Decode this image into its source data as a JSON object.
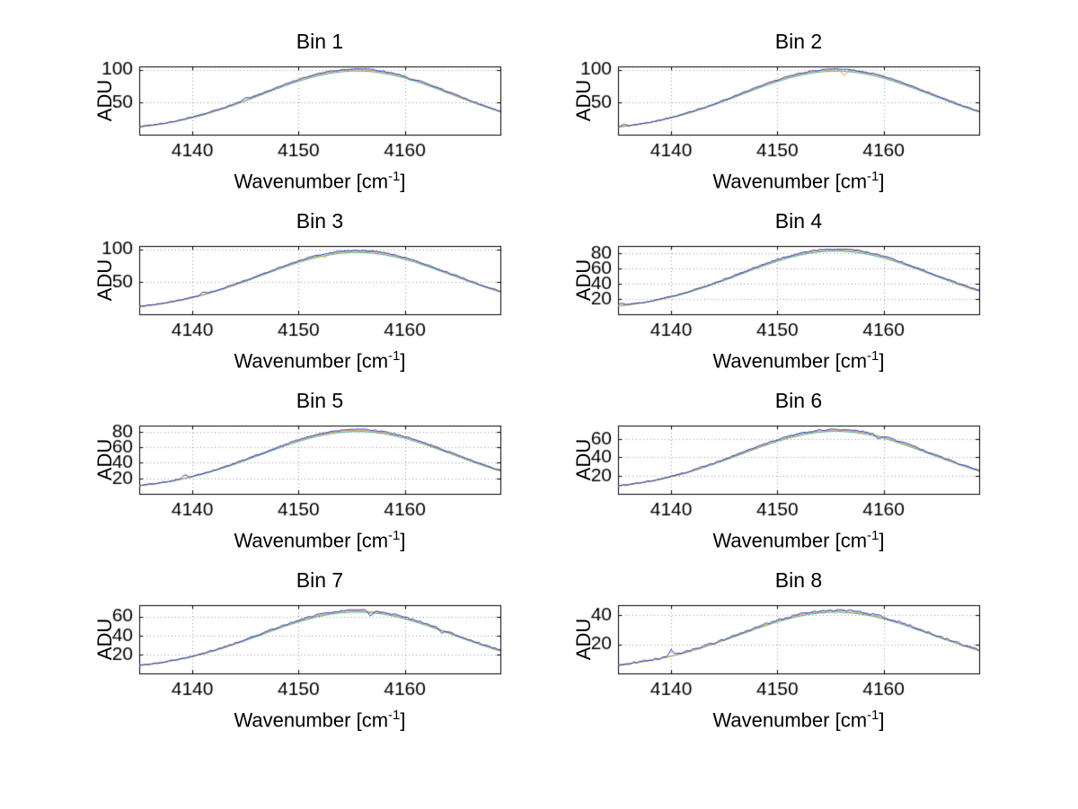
{
  "figure": {
    "background": "#ffffff",
    "axis_color": "#000000",
    "grid_color": "#999999",
    "grid_style": "dotted"
  },
  "labels": {
    "ylabel": "ADU",
    "xlabel_main": "Wavenumber [cm",
    "xlabel_sup": "-1",
    "xlabel_end": "]"
  },
  "chart_data": [
    {
      "type": "line",
      "title": "Bin 1",
      "xlabel": "Wavenumber [cm-1]",
      "ylabel": "ADU",
      "xlim": [
        4135,
        4169
      ],
      "xticks": [
        4140,
        4150,
        4160
      ],
      "yticks": [
        50,
        100
      ],
      "ylim": [
        0,
        105
      ],
      "grid": true,
      "x": [
        4135,
        4136,
        4137,
        4138,
        4139,
        4140,
        4141,
        4142,
        4143,
        4144,
        4145,
        4146,
        4147,
        4148,
        4149,
        4150,
        4151,
        4152,
        4153,
        4154,
        4155,
        4156,
        4157,
        4158,
        4159,
        4160,
        4161,
        4162,
        4163,
        4164,
        4165,
        4166,
        4167,
        4168,
        4169
      ],
      "values": [
        12.1,
        14.1,
        16.5,
        19.3,
        22.7,
        26.6,
        30.9,
        35.9,
        41.2,
        47,
        53.1,
        59.4,
        65.8,
        72.2,
        78.2,
        83.8,
        88.9,
        93.1,
        96.4,
        98.7,
        99.8,
        99.8,
        98.7,
        96.4,
        93.1,
        88.9,
        83.8,
        78.2,
        72.2,
        65.8,
        59.4,
        53.1,
        47,
        41.2,
        35.9
      ],
      "series": [
        {
          "name": "trace-teal",
          "color": "#3fae9c",
          "scale": 0.98,
          "noise": 0
        },
        {
          "name": "trace-orange",
          "color": "#e8952f",
          "scale": 1.0,
          "noise": 0.25
        },
        {
          "name": "trace-blue",
          "color": "#2438c8",
          "scale": 1.012,
          "noise": 0.8
        }
      ],
      "spikes": [
        {
          "x": 4145,
          "dy": 3,
          "series": "trace-blue"
        },
        {
          "x": 4160.6,
          "dy": -3,
          "series": "trace-blue"
        }
      ]
    },
    {
      "type": "line",
      "title": "Bin 2",
      "xlabel": "Wavenumber [cm-1]",
      "ylabel": "ADU",
      "xlim": [
        4135,
        4169
      ],
      "xticks": [
        4140,
        4150,
        4160
      ],
      "yticks": [
        50,
        100
      ],
      "ylim": [
        0,
        105
      ],
      "grid": true,
      "x": [
        4135,
        4136,
        4137,
        4138,
        4139,
        4140,
        4141,
        4142,
        4143,
        4144,
        4145,
        4146,
        4147,
        4148,
        4149,
        4150,
        4151,
        4152,
        4153,
        4154,
        4155,
        4156,
        4157,
        4158,
        4159,
        4160,
        4161,
        4162,
        4163,
        4164,
        4165,
        4166,
        4167,
        4168,
        4169
      ],
      "values": [
        11.8,
        13.9,
        16.2,
        19,
        22.4,
        26.3,
        30.6,
        35.5,
        40.8,
        46.5,
        52.6,
        58.9,
        65.3,
        71.7,
        77.7,
        83.4,
        88.5,
        92.7,
        96,
        98.4,
        99.6,
        99.7,
        98.6,
        96.2,
        92.9,
        88.7,
        83.5,
        77.9,
        71.9,
        65.5,
        59.1,
        52.8,
        46.7,
        40.9,
        35.6
      ],
      "series": [
        {
          "name": "trace-teal",
          "color": "#3fae9c",
          "scale": 0.98,
          "noise": 0
        },
        {
          "name": "trace-orange",
          "color": "#e8952f",
          "scale": 1.0,
          "noise": 0.25
        },
        {
          "name": "trace-blue",
          "color": "#2438c8",
          "scale": 1.012,
          "noise": 0.8
        }
      ],
      "spikes": [
        {
          "x": 4156.3,
          "dy": -9,
          "series": "trace-orange"
        },
        {
          "x": 4135.5,
          "dy": 3,
          "series": "trace-blue"
        }
      ]
    },
    {
      "type": "line",
      "title": "Bin 3",
      "xlabel": "Wavenumber [cm-1]",
      "ylabel": "ADU",
      "xlim": [
        4135,
        4169
      ],
      "xticks": [
        4140,
        4150,
        4160
      ],
      "yticks": [
        50,
        100
      ],
      "ylim": [
        0,
        105
      ],
      "grid": true,
      "x": [
        4135,
        4136,
        4137,
        4138,
        4139,
        4140,
        4141,
        4142,
        4143,
        4144,
        4145,
        4146,
        4147,
        4148,
        4149,
        4150,
        4151,
        4152,
        4153,
        4154,
        4155,
        4156,
        4157,
        4158,
        4159,
        4160,
        4161,
        4162,
        4163,
        4164,
        4165,
        4166,
        4167,
        4168,
        4169
      ],
      "values": [
        11.9,
        13.8,
        16.1,
        18.9,
        22.1,
        25.9,
        30.1,
        34.9,
        40.1,
        45.7,
        51.6,
        57.7,
        63.9,
        70,
        75.8,
        81.4,
        86.2,
        90.3,
        93.5,
        95.7,
        96.8,
        96.8,
        95.7,
        93.5,
        90.3,
        86.2,
        81.4,
        75.8,
        70,
        63.9,
        57.7,
        51.6,
        45.7,
        40.1,
        34.9
      ],
      "series": [
        {
          "name": "trace-teal",
          "color": "#3fae9c",
          "scale": 0.98,
          "noise": 0
        },
        {
          "name": "trace-orange",
          "color": "#e8952f",
          "scale": 1.0,
          "noise": 0.25
        },
        {
          "name": "trace-blue",
          "color": "#2438c8",
          "scale": 1.012,
          "noise": 0.8
        }
      ],
      "spikes": [
        {
          "x": 4141,
          "dy": 3,
          "series": "trace-blue"
        },
        {
          "x": 4152.5,
          "dy": -4,
          "series": "trace-orange"
        }
      ]
    },
    {
      "type": "line",
      "title": "Bin 4",
      "xlabel": "Wavenumber [cm-1]",
      "ylabel": "ADU",
      "xlim": [
        4135,
        4169
      ],
      "xticks": [
        4140,
        4150,
        4160
      ],
      "yticks": [
        20,
        40,
        60,
        80
      ],
      "ylim": [
        0,
        90
      ],
      "grid": true,
      "x": [
        4135,
        4136,
        4137,
        4138,
        4139,
        4140,
        4141,
        4142,
        4143,
        4144,
        4145,
        4146,
        4147,
        4148,
        4149,
        4150,
        4151,
        4152,
        4153,
        4154,
        4155,
        4156,
        4157,
        4158,
        4159,
        4160,
        4161,
        4162,
        4163,
        4164,
        4165,
        4166,
        4167,
        4168,
        4169
      ],
      "values": [
        11,
        12.7,
        14.7,
        17.1,
        19.9,
        23.2,
        26.8,
        31,
        35.5,
        40.4,
        45.5,
        50.8,
        56.2,
        61.6,
        66.6,
        71.4,
        75.6,
        79.2,
        82,
        83.9,
        84.9,
        84.9,
        83.9,
        82,
        79.2,
        75.6,
        71.4,
        66.6,
        61.6,
        56.2,
        50.8,
        45.5,
        40.4,
        35.5,
        31
      ],
      "series": [
        {
          "name": "trace-teal",
          "color": "#3fae9c",
          "scale": 0.98,
          "noise": 0
        },
        {
          "name": "trace-orange",
          "color": "#e8952f",
          "scale": 1.0,
          "noise": 0.25
        },
        {
          "name": "trace-blue",
          "color": "#2438c8",
          "scale": 1.012,
          "noise": 0.8
        }
      ],
      "spikes": [
        {
          "x": 4135.3,
          "dy": 3,
          "series": "trace-blue"
        }
      ]
    },
    {
      "type": "line",
      "title": "Bin 5",
      "xlabel": "Wavenumber [cm-1]",
      "ylabel": "ADU",
      "xlim": [
        4135,
        4169
      ],
      "xticks": [
        4140,
        4150,
        4160
      ],
      "yticks": [
        20,
        40,
        60,
        80
      ],
      "ylim": [
        0,
        88
      ],
      "grid": true,
      "x": [
        4135,
        4136,
        4137,
        4138,
        4139,
        4140,
        4141,
        4142,
        4143,
        4144,
        4145,
        4146,
        4147,
        4148,
        4149,
        4150,
        4151,
        4152,
        4153,
        4154,
        4155,
        4156,
        4157,
        4158,
        4159,
        4160,
        4161,
        4162,
        4163,
        4164,
        4165,
        4166,
        4167,
        4168,
        4169
      ],
      "values": [
        10.8,
        12.4,
        14.3,
        16.6,
        19.3,
        22.5,
        26,
        30,
        34.3,
        39,
        44,
        49.1,
        54.3,
        59.4,
        64.3,
        68.9,
        73,
        76.4,
        79.1,
        80.9,
        81.9,
        81.9,
        80.9,
        79.1,
        76.4,
        73,
        68.9,
        64.3,
        59.4,
        54.3,
        49.1,
        44,
        39,
        34.3,
        30
      ],
      "series": [
        {
          "name": "trace-teal",
          "color": "#3fae9c",
          "scale": 0.98,
          "noise": 0
        },
        {
          "name": "trace-orange",
          "color": "#e8952f",
          "scale": 1.0,
          "noise": 0.25
        },
        {
          "name": "trace-blue",
          "color": "#2438c8",
          "scale": 1.012,
          "noise": 0.8
        }
      ],
      "spikes": [
        {
          "x": 4139.3,
          "dy": 4,
          "series": "trace-blue"
        }
      ]
    },
    {
      "type": "line",
      "title": "Bin 6",
      "xlabel": "Wavenumber [cm-1]",
      "ylabel": "ADU",
      "xlim": [
        4135,
        4169
      ],
      "xticks": [
        4140,
        4150,
        4160
      ],
      "yticks": [
        20,
        40,
        60
      ],
      "ylim": [
        0,
        75
      ],
      "grid": true,
      "x": [
        4135,
        4136,
        4137,
        4138,
        4139,
        4140,
        4141,
        4142,
        4143,
        4144,
        4145,
        4146,
        4147,
        4148,
        4149,
        4150,
        4151,
        4152,
        4153,
        4154,
        4155,
        4156,
        4157,
        4158,
        4159,
        4160,
        4161,
        4162,
        4163,
        4164,
        4165,
        4166,
        4167,
        4168,
        4169
      ],
      "values": [
        8.9,
        10.3,
        12,
        14,
        16.3,
        19,
        22,
        25.4,
        29.2,
        33.2,
        37.4,
        41.8,
        46.2,
        50.7,
        54.8,
        58.8,
        62.3,
        65.2,
        67.5,
        69.1,
        69.9,
        69.9,
        69.1,
        67.5,
        65.2,
        62.3,
        58.8,
        54.8,
        50.7,
        46.2,
        41.8,
        37.4,
        33.2,
        29.2,
        25.4
      ],
      "series": [
        {
          "name": "trace-teal",
          "color": "#3fae9c",
          "scale": 0.98,
          "noise": 0
        },
        {
          "name": "trace-orange",
          "color": "#e8952f",
          "scale": 1.0,
          "noise": 0.25
        },
        {
          "name": "trace-blue",
          "color": "#2438c8",
          "scale": 1.012,
          "noise": 0.8
        }
      ],
      "spikes": [
        {
          "x": 4159.5,
          "dy": -4,
          "series": "trace-blue"
        }
      ]
    },
    {
      "type": "line",
      "title": "Bin 7",
      "xlabel": "Wavenumber [cm-1]",
      "ylabel": "ADU",
      "xlim": [
        4135,
        4169
      ],
      "xticks": [
        4140,
        4150,
        4160
      ],
      "yticks": [
        20,
        40,
        60
      ],
      "ylim": [
        0,
        72
      ],
      "grid": true,
      "x": [
        4135,
        4136,
        4137,
        4138,
        4139,
        4140,
        4141,
        4142,
        4143,
        4144,
        4145,
        4146,
        4147,
        4148,
        4149,
        4150,
        4151,
        4152,
        4153,
        4154,
        4155,
        4156,
        4157,
        4158,
        4159,
        4160,
        4161,
        4162,
        4163,
        4164,
        4165,
        4166,
        4167,
        4168,
        4169
      ],
      "values": [
        8.6,
        9.9,
        11.5,
        13.4,
        15.5,
        18.1,
        20.9,
        24.1,
        27.6,
        31.4,
        35.4,
        39.5,
        43.7,
        47.8,
        51.8,
        55.4,
        58.7,
        61.5,
        63.7,
        65.1,
        65.9,
        65.9,
        65.1,
        63.7,
        61.5,
        58.7,
        55.4,
        51.8,
        47.8,
        43.7,
        39.5,
        35.4,
        31.4,
        27.6,
        24.1
      ],
      "series": [
        {
          "name": "trace-teal",
          "color": "#3fae9c",
          "scale": 0.98,
          "noise": 0
        },
        {
          "name": "trace-orange",
          "color": "#e8952f",
          "scale": 1.0,
          "noise": 0.25
        },
        {
          "name": "trace-blue",
          "color": "#2438c8",
          "scale": 1.012,
          "noise": 0.8
        }
      ],
      "spikes": [
        {
          "x": 4156.8,
          "dy": -6,
          "series": "trace-blue"
        },
        {
          "x": 4163.5,
          "dy": -4,
          "series": "trace-blue"
        }
      ]
    },
    {
      "type": "line",
      "title": "Bin 8",
      "xlabel": "Wavenumber [cm-1]",
      "ylabel": "ADU",
      "xlim": [
        4135,
        4169
      ],
      "xticks": [
        4140,
        4150,
        4160
      ],
      "yticks": [
        20,
        40
      ],
      "ylim": [
        0,
        47
      ],
      "grid": true,
      "x": [
        4135,
        4136,
        4137,
        4138,
        4139,
        4140,
        4141,
        4142,
        4143,
        4144,
        4145,
        4146,
        4147,
        4148,
        4149,
        4150,
        4151,
        4152,
        4153,
        4154,
        4155,
        4156,
        4157,
        4158,
        4159,
        4160,
        4161,
        4162,
        4163,
        4164,
        4165,
        4166,
        4167,
        4168,
        4169
      ],
      "values": [
        6,
        6.8,
        7.8,
        9,
        10.4,
        12.1,
        13.9,
        16,
        18.2,
        20.7,
        23.3,
        25.9,
        28.6,
        31.3,
        33.8,
        36.2,
        38.3,
        40.1,
        41.5,
        42.4,
        42.9,
        42.9,
        42.4,
        41.5,
        40.1,
        38.3,
        36.2,
        33.8,
        31.3,
        28.6,
        25.9,
        23.3,
        20.7,
        18.2,
        16
      ],
      "series": [
        {
          "name": "trace-teal",
          "color": "#3fae9c",
          "scale": 0.98,
          "noise": 0
        },
        {
          "name": "trace-orange",
          "color": "#e8952f",
          "scale": 1.0,
          "noise": 0.25
        },
        {
          "name": "trace-blue",
          "color": "#2438c8",
          "scale": 1.012,
          "noise": 0.8
        }
      ],
      "spikes": [
        {
          "x": 4140,
          "dy": 4,
          "series": "trace-blue"
        }
      ]
    }
  ]
}
